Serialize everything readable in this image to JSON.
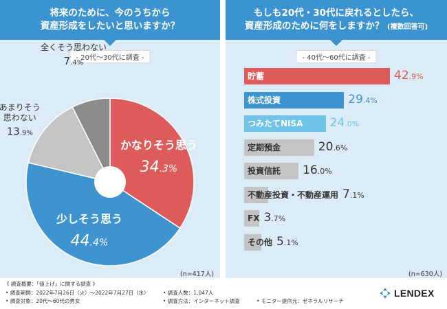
{
  "left": {
    "title_line1": "将来のために、今のうちから",
    "title_line2": "資産形成をしたいと思いますか？",
    "survey_label": "- 20代〜30代に調査 -",
    "n_count": "(n=417人)"
  },
  "right": {
    "title_line1": "もしも20代・30代に戻れるとしたら、",
    "title_line2_main": "資産形成のために何をしますか？",
    "title_line2_note": "(複数回答可)",
    "survey_label": "- 40代〜60代に調査 -",
    "n_count": "(n=630人)"
  },
  "chart_data": [
    {
      "type": "pie",
      "title": "将来のために、今のうちから資産形成をしたいと思いますか？",
      "unit": "%",
      "slices": [
        {
          "label": "かなりそう思う",
          "label_lines": [
            "かなりそう思う"
          ],
          "value": 34.3,
          "value_int": "34",
          "value_dec": ".3",
          "color": "#de5b5b",
          "label_color": "#ffffff"
        },
        {
          "label": "少しそう思う",
          "label_lines": [
            "少しそう思う"
          ],
          "value": 44.4,
          "value_int": "44",
          "value_dec": ".4",
          "color": "#3d94cf",
          "label_color": "#ffffff"
        },
        {
          "label": "あまりそう思わない",
          "label_lines": [
            "あまりそう",
            "思わない"
          ],
          "value": 13.9,
          "value_int": "13",
          "value_dec": ".9",
          "color": "#c4c4c4",
          "label_color": "#333333"
        },
        {
          "label": "全くそう思わない",
          "label_lines": [
            "全くそう思わない"
          ],
          "value": 7.4,
          "value_int": "7",
          "value_dec": ".4",
          "color": "#8c8c8c",
          "label_color": "#333333"
        }
      ]
    },
    {
      "type": "bar",
      "orientation": "horizontal",
      "title": "もしも20代・30代に戻れるとしたら、資産形成のために何をしますか？",
      "unit": "%",
      "xlim": [
        0,
        50
      ],
      "bars": [
        {
          "label": "貯蓄",
          "value": 42.9,
          "value_int": "42",
          "value_dec": ".9",
          "color": "#de5b5b",
          "label_color": "#ffffff",
          "value_color": "#de5b5b"
        },
        {
          "label": "株式投資",
          "value": 29.4,
          "value_int": "29",
          "value_dec": ".4",
          "color": "#3d94cf",
          "label_color": "#ffffff",
          "value_color": "#3d94cf"
        },
        {
          "label": "つみたてNISA",
          "value": 24.0,
          "value_int": "24",
          "value_dec": ".0",
          "color": "#6ec3e7",
          "label_color": "#ffffff",
          "value_color": "#6ec3e7"
        },
        {
          "label": "定期預金",
          "value": 20.6,
          "value_int": "20",
          "value_dec": ".6",
          "color": "#c4c4c4",
          "label_color": "#333333",
          "value_color": "#333333"
        },
        {
          "label": "投資信託",
          "value": 16.0,
          "value_int": "16",
          "value_dec": ".0",
          "color": "#c4c4c4",
          "label_color": "#333333",
          "value_color": "#333333"
        },
        {
          "label": "不動産投資・不動産運用",
          "value": 7.1,
          "value_int": "7",
          "value_dec": ".1",
          "color": "#c4c4c4",
          "label_color": "#333333",
          "value_color": "#333333"
        },
        {
          "label": "FX",
          "value": 3.7,
          "value_int": "3",
          "value_dec": ".7",
          "color": "#c4c4c4",
          "label_color": "#333333",
          "value_color": "#333333"
        },
        {
          "label": "その他",
          "value": 5.1,
          "value_int": "5",
          "value_dec": ".1",
          "color": "#c4c4c4",
          "label_color": "#333333",
          "value_color": "#333333"
        }
      ]
    }
  ],
  "footer": {
    "title": "《 調査概要：「値上げ」に関する調査 》",
    "period": "• 調査期間：2022年7月26日（火）〜2022年7月27日（水）",
    "target": "• 調査対象：20代〜60代の男女",
    "count": "• 調査人数：1,047人",
    "method": "• 調査方法：インターネット調査",
    "monitor": "• モニター提供元：ゼネラルリサーチ"
  },
  "logo": {
    "text": "LENDEX"
  }
}
